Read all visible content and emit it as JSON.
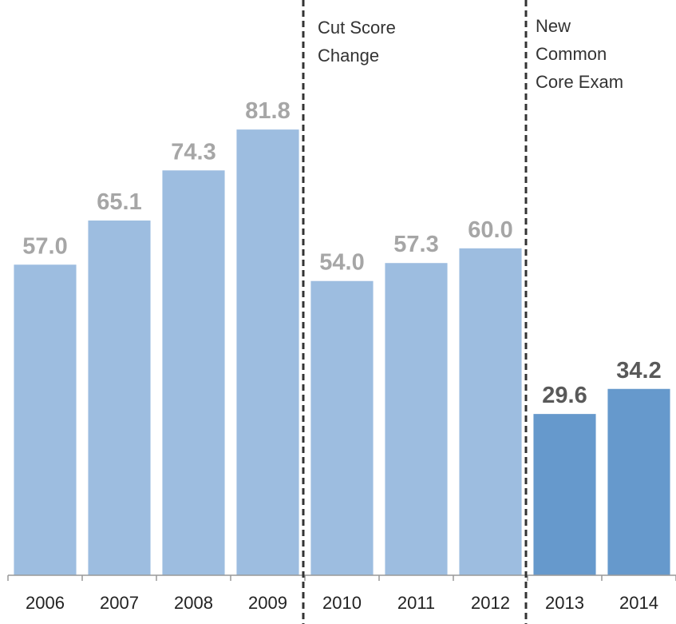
{
  "chart_data": {
    "type": "bar",
    "categories": [
      "2006",
      "2007",
      "2008",
      "2009",
      "2010",
      "2011",
      "2012",
      "2013",
      "2014"
    ],
    "values": [
      57.0,
      65.1,
      74.3,
      81.8,
      54.0,
      57.3,
      60.0,
      29.6,
      34.2
    ],
    "value_labels": [
      "57.0",
      "65.1",
      "74.3",
      "81.8",
      "54.0",
      "57.3",
      "60.0",
      "29.6",
      "34.2"
    ],
    "colors": [
      "#9dbde0",
      "#9dbde0",
      "#9dbde0",
      "#9dbde0",
      "#9dbde0",
      "#9dbde0",
      "#9dbde0",
      "#6699cc",
      "#6699cc"
    ],
    "label_colors": [
      "#a6a6a6",
      "#a6a6a6",
      "#a6a6a6",
      "#a6a6a6",
      "#a6a6a6",
      "#a6a6a6",
      "#a6a6a6",
      "#595959",
      "#595959"
    ],
    "ylim": [
      0,
      100
    ],
    "annotations": [
      {
        "lines": [
          "Cut Score",
          "Change"
        ]
      },
      {
        "lines": [
          "New",
          "Common",
          "Core Exam"
        ]
      }
    ]
  }
}
